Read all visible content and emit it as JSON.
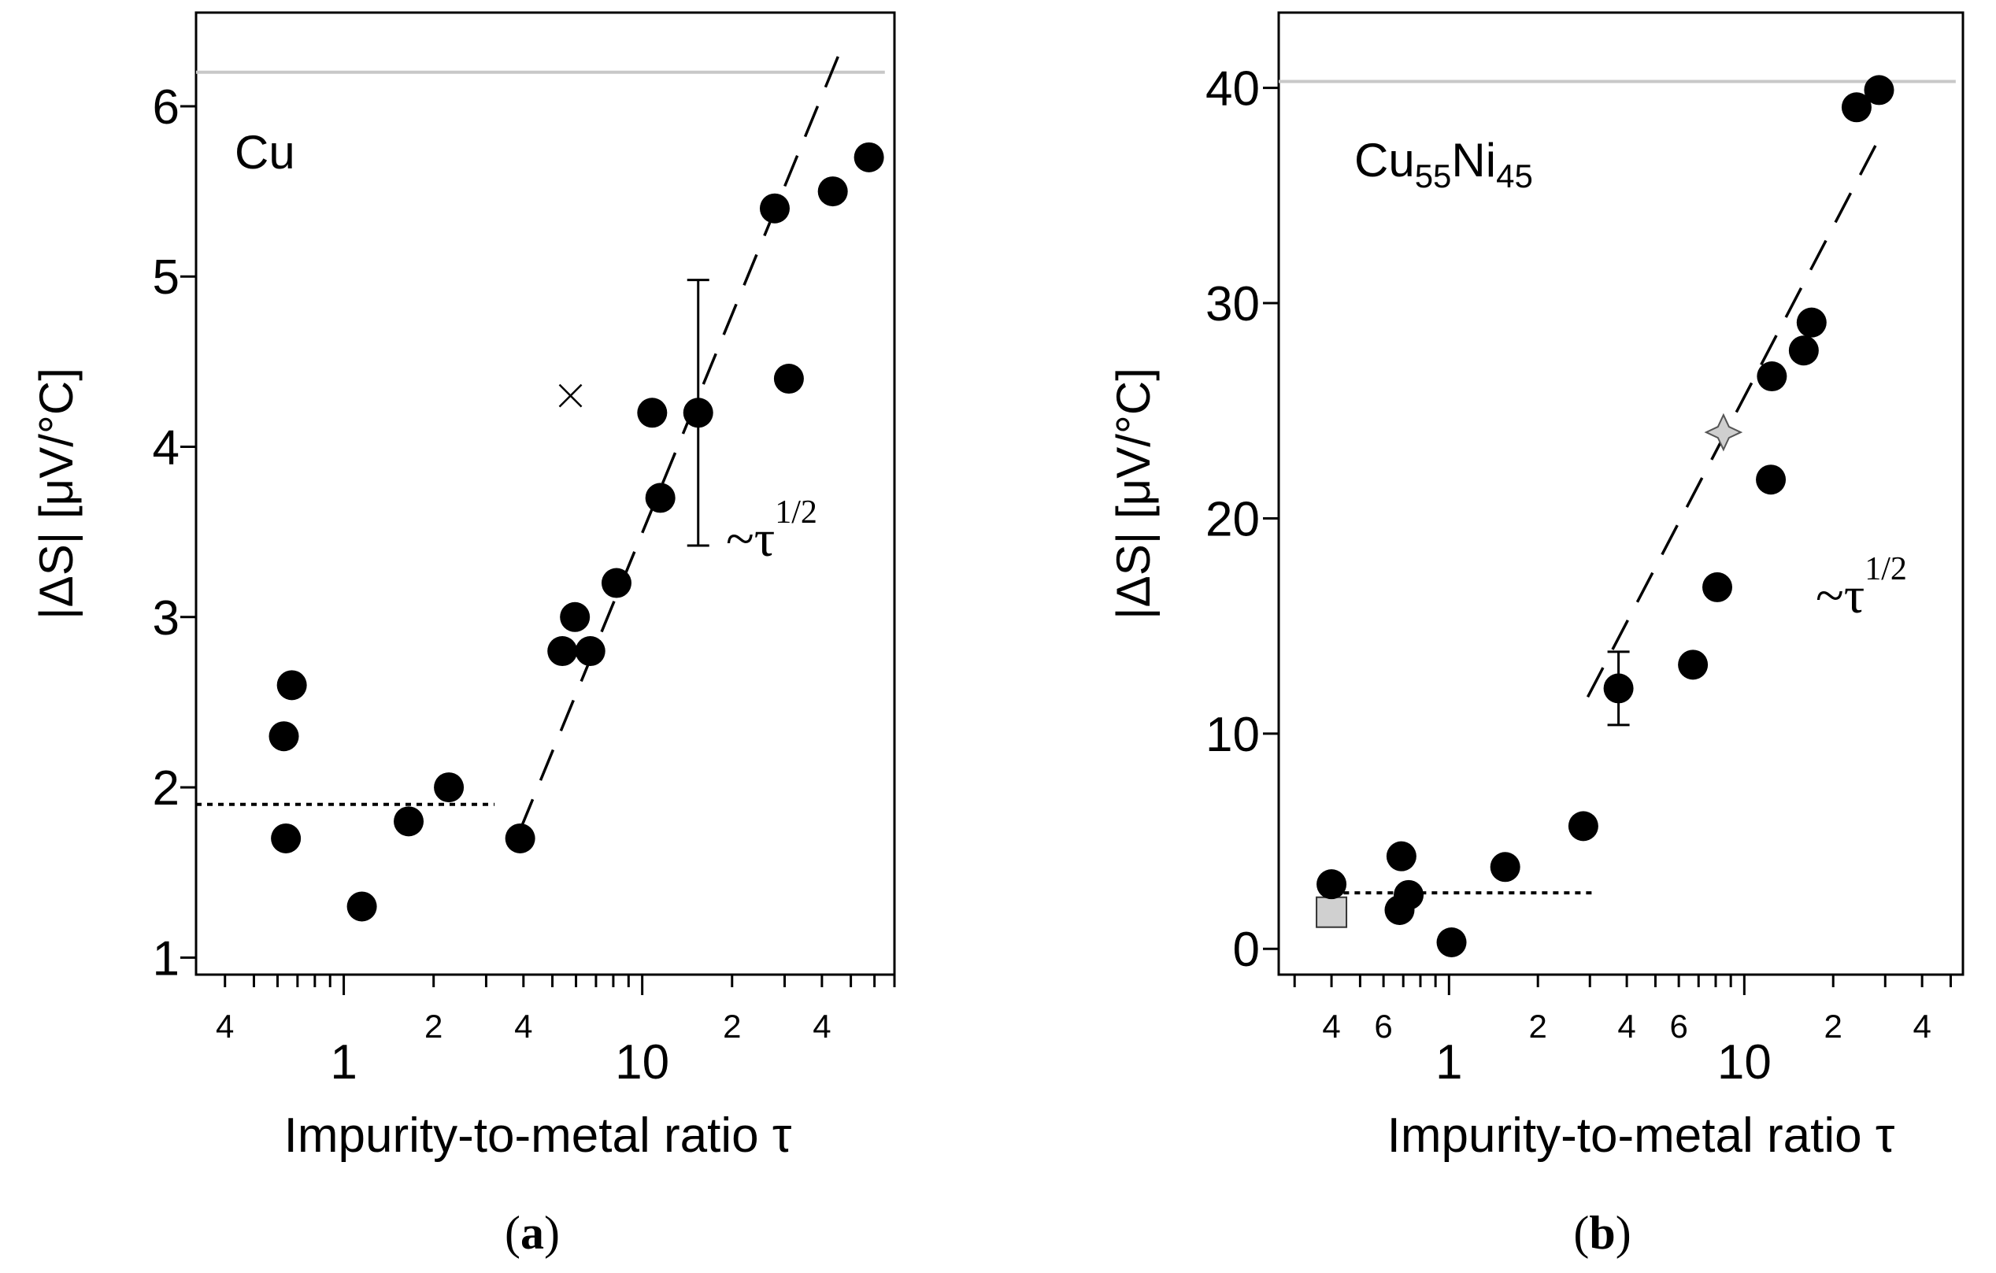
{
  "chart_data": [
    {
      "type": "scatter",
      "panel_caption": {
        "open": "(",
        "letter": "a",
        "close": ")"
      },
      "material_label": "Cu",
      "xlabel": "Impurity-to-metal ratio τ",
      "ylabel": "|ΔS| [μV/°C]",
      "xscale": "log",
      "xlim": [
        0.32,
        70
      ],
      "ylim": [
        0.9,
        6.55
      ],
      "major_tick_labels": [
        {
          "value": 1,
          "label": "1"
        },
        {
          "value": 10,
          "label": "10"
        }
      ],
      "minor_tick_labels": [
        {
          "value": 0.4,
          "label": "4"
        },
        {
          "value": 2,
          "label": "2"
        },
        {
          "value": 4,
          "label": "4"
        },
        {
          "value": 20,
          "label": "2"
        },
        {
          "value": 40,
          "label": "4"
        }
      ],
      "y_ticks": [
        1,
        2,
        3,
        4,
        5,
        6
      ],
      "annotation": {
        "base": "~τ",
        "exponent": "1/2"
      },
      "points": [
        {
          "x": 0.63,
          "y": 2.3
        },
        {
          "x": 0.67,
          "y": 2.6
        },
        {
          "x": 0.64,
          "y": 1.7
        },
        {
          "x": 1.15,
          "y": 1.3
        },
        {
          "x": 1.65,
          "y": 1.8
        },
        {
          "x": 2.25,
          "y": 2.0
        },
        {
          "x": 3.9,
          "y": 1.7
        },
        {
          "x": 5.4,
          "y": 2.8
        },
        {
          "x": 5.95,
          "y": 3.0
        },
        {
          "x": 6.7,
          "y": 2.8
        },
        {
          "x": 8.2,
          "y": 3.2
        },
        {
          "x": 10.8,
          "y": 4.2
        },
        {
          "x": 11.5,
          "y": 3.7
        },
        {
          "x": 15.4,
          "y": 4.2
        },
        {
          "x": 27.8,
          "y": 5.4
        },
        {
          "x": 31.0,
          "y": 4.4
        },
        {
          "x": 43.5,
          "y": 5.5
        },
        {
          "x": 57.5,
          "y": 5.7
        }
      ],
      "cross_point": {
        "x": 5.75,
        "y": 4.3
      },
      "error_bar": {
        "x": 15.4,
        "y_low": 3.42,
        "y_high": 4.98
      },
      "reference_hline": {
        "y": 6.2,
        "x_start": 0.32,
        "x_end": 65
      },
      "plateau_line": {
        "y": 1.9,
        "x_start": 0.32,
        "x_end": 3.2
      },
      "sqrt_fit": {
        "x_start": 3.9,
        "y_start": 1.75,
        "x_end": 45.5,
        "y_end": 6.3
      }
    },
    {
      "type": "scatter",
      "panel_caption": {
        "open": "(",
        "letter": "b",
        "close": ")"
      },
      "material_label": {
        "el1": "Cu",
        "sub1": "55",
        "el2": "Ni",
        "sub2": "45"
      },
      "xlabel": "Impurity-to-metal ratio τ",
      "ylabel": "|ΔS| [μV/°C]",
      "xscale": "log",
      "xlim": [
        0.265,
        55
      ],
      "ylim": [
        -1.2,
        43.5
      ],
      "major_tick_labels": [
        {
          "value": 1,
          "label": "1"
        },
        {
          "value": 10,
          "label": "10"
        }
      ],
      "minor_tick_labels": [
        {
          "value": 0.4,
          "label": "4"
        },
        {
          "value": 0.6,
          "label": "6"
        },
        {
          "value": 2,
          "label": "2"
        },
        {
          "value": 4,
          "label": "4"
        },
        {
          "value": 6,
          "label": "6"
        },
        {
          "value": 20,
          "label": "2"
        },
        {
          "value": 40,
          "label": "4"
        }
      ],
      "y_ticks": [
        0,
        10,
        20,
        30,
        40
      ],
      "annotation": {
        "base": "~τ",
        "exponent": "1/2"
      },
      "points": [
        {
          "x": 0.4,
          "y": 3.0
        },
        {
          "x": 0.69,
          "y": 4.3
        },
        {
          "x": 0.68,
          "y": 1.8
        },
        {
          "x": 0.73,
          "y": 2.5
        },
        {
          "x": 1.02,
          "y": 0.3
        },
        {
          "x": 1.55,
          "y": 3.8
        },
        {
          "x": 2.85,
          "y": 5.7
        },
        {
          "x": 3.75,
          "y": 12.1
        },
        {
          "x": 6.7,
          "y": 13.2
        },
        {
          "x": 8.1,
          "y": 16.8
        },
        {
          "x": 12.3,
          "y": 21.8
        },
        {
          "x": 12.4,
          "y": 26.6
        },
        {
          "x": 15.9,
          "y": 27.8
        },
        {
          "x": 16.9,
          "y": 29.1
        },
        {
          "x": 24.0,
          "y": 39.1
        },
        {
          "x": 28.6,
          "y": 39.9
        }
      ],
      "star_point": {
        "x": 8.5,
        "y": 24.0
      },
      "square_point": {
        "x": 0.4,
        "y": 1.7
      },
      "error_bar": {
        "x": 3.75,
        "y_low": 10.4,
        "y_high": 13.8
      },
      "reference_hline": {
        "y": 40.3,
        "x_start": 0.265,
        "x_end": 52
      },
      "plateau_line": {
        "y": 2.6,
        "x_start": 0.37,
        "x_end": 3.05
      },
      "sqrt_fit": {
        "x_start": 2.95,
        "y_start": 11.7,
        "x_end": 28.5,
        "y_end": 37.6
      }
    }
  ]
}
